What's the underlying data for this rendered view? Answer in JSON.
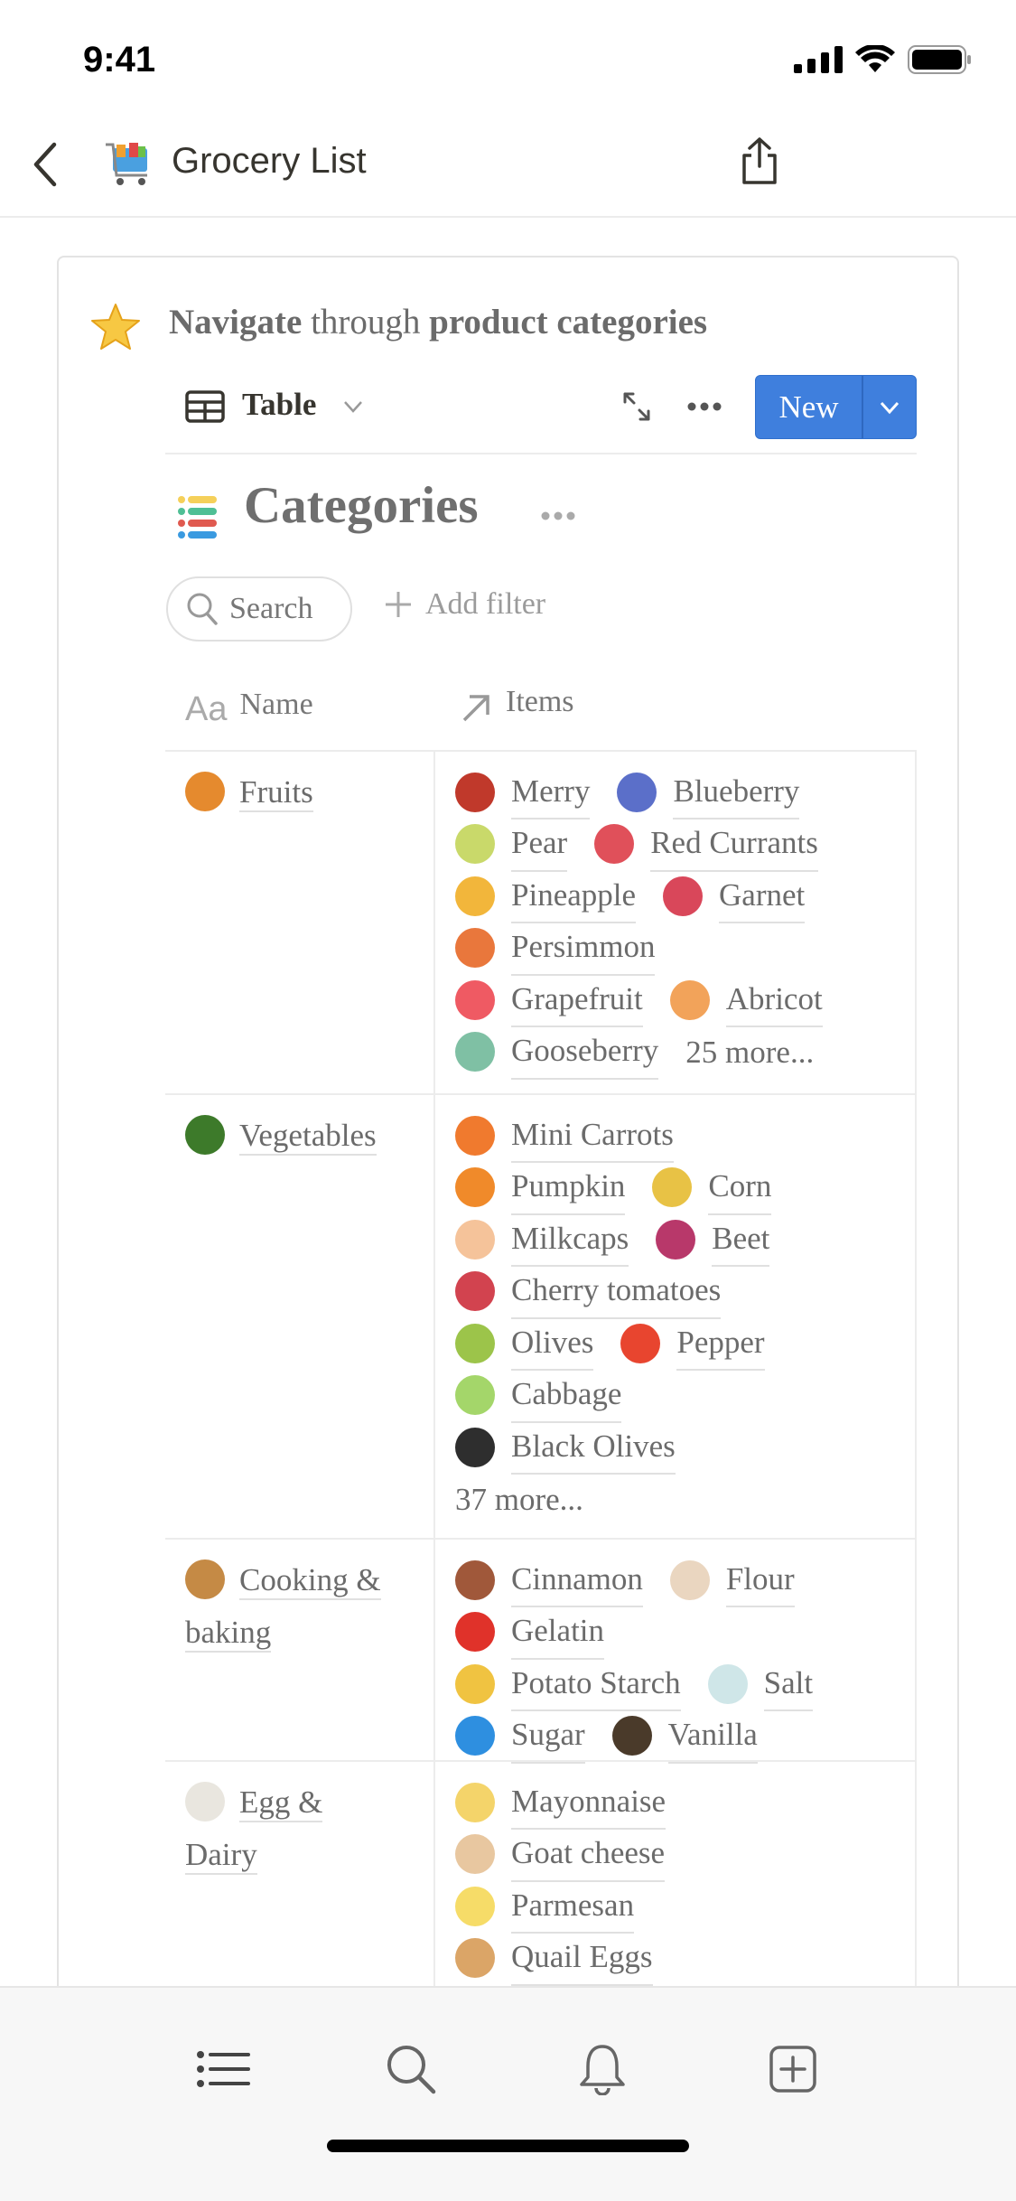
{
  "status": {
    "time": "9:41"
  },
  "nav": {
    "title": "Grocery List",
    "page_icon": "shopping-cart-icon",
    "share_icon": "share-icon"
  },
  "callout": {
    "icon": "star-icon",
    "bold1": "Navigate",
    "regular": " through ",
    "bold2": "product categories"
  },
  "toolbar": {
    "view_label": "Table",
    "new_label": "New"
  },
  "database": {
    "title": "Categories"
  },
  "filters": {
    "search_label": "Search",
    "add_filter_label": "Add filter"
  },
  "columns": {
    "name": "Name",
    "name_icon": "Aa",
    "items": "Items"
  },
  "accent": "#3f7fdd",
  "rows": [
    {
      "name_lines": [
        "Fruits"
      ],
      "icon": "orange-icon",
      "color": "#e58a2e",
      "height": 380,
      "lines": [
        [
          {
            "t": "Merry",
            "c": "#c0392b"
          },
          {
            "t": "Blueberry",
            "c": "#5b6fc9"
          }
        ],
        [
          {
            "t": "Pear",
            "c": "#c9d96a"
          },
          {
            "t": "Red Currants",
            "c": "#e0505a"
          }
        ],
        [
          {
            "t": "Pineapple",
            "c": "#f2b63b"
          },
          {
            "t": "Garnet",
            "c": "#d9475a"
          }
        ],
        [
          {
            "t": "Persimmon",
            "c": "#e9773c"
          }
        ],
        [
          {
            "t": "Grapefruit",
            "c": "#ef5a63"
          },
          {
            "t": "Abricot",
            "c": "#f2a35a"
          }
        ],
        [
          {
            "t": "Gooseberry",
            "c": "#7fc0a4"
          },
          {
            "t": "25 more...",
            "more": true
          }
        ]
      ]
    },
    {
      "name_lines": [
        "Vegetables"
      ],
      "icon": "broccoli-icon",
      "color": "#3d7a2a",
      "height": 492,
      "lines": [
        [
          {
            "t": "Mini Carrots",
            "c": "#f07a2e"
          }
        ],
        [
          {
            "t": "Pumpkin",
            "c": "#f08a2a"
          },
          {
            "t": "Corn",
            "c": "#e8c245"
          }
        ],
        [
          {
            "t": "Milkcaps",
            "c": "#f5c39a"
          },
          {
            "t": "Beet",
            "c": "#b8386a"
          }
        ],
        [
          {
            "t": "Cherry tomatoes",
            "c": "#d2434f"
          }
        ],
        [
          {
            "t": "Olives",
            "c": "#9cc44a"
          },
          {
            "t": "Pepper",
            "c": "#e8452f"
          }
        ],
        [
          {
            "t": "Cabbage",
            "c": "#a4d66a"
          }
        ],
        [
          {
            "t": "Black Olives",
            "c": "#2e2e2e"
          }
        ],
        [
          {
            "t": "37 more...",
            "more": true
          }
        ]
      ]
    },
    {
      "name_lines": [
        "Cooking &",
        "baking"
      ],
      "icon": "cookie-icon",
      "color": "#c58a45",
      "height": 246,
      "lines": [
        [
          {
            "t": "Cinnamon",
            "c": "#a0583a"
          },
          {
            "t": "Flour",
            "c": "#ead6c0"
          }
        ],
        [
          {
            "t": "Gelatin",
            "c": "#e0322a"
          }
        ],
        [
          {
            "t": "Potato Starch",
            "c": "#f0c341"
          },
          {
            "t": "Salt",
            "c": "#cfe6e8"
          }
        ],
        [
          {
            "t": "Sugar",
            "c": "#2e8fe0"
          },
          {
            "t": "Vanilla",
            "c": "#4a3a2a"
          }
        ]
      ]
    },
    {
      "name_lines": [
        "Egg &",
        "Dairy"
      ],
      "icon": "egg-icon",
      "color": "#e9e6df",
      "height": 300,
      "lines": [
        [
          {
            "t": "Mayonnaise",
            "c": "#f4d46a"
          }
        ],
        [
          {
            "t": "Goat cheese",
            "c": "#e8c7a0"
          }
        ],
        [
          {
            "t": "Parmesan",
            "c": "#f6dc68"
          }
        ],
        [
          {
            "t": "Quail Eggs",
            "c": "#dba567"
          }
        ]
      ]
    }
  ],
  "tabbar": {
    "tabs": [
      "list-icon",
      "search-icon",
      "bell-icon",
      "add-square-icon"
    ]
  }
}
